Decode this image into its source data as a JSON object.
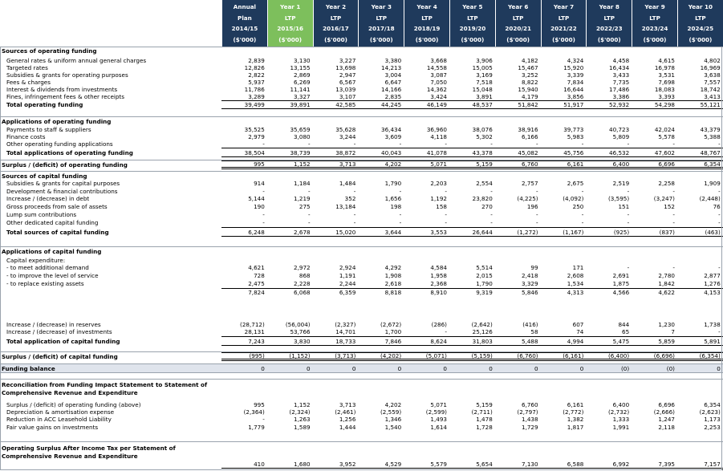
{
  "header": {
    "columns": [
      {
        "l1": "Annual",
        "l2": "Plan",
        "l3": "2014/15",
        "l4": "($'000)"
      },
      {
        "l1": "Year 1",
        "l2": "LTP",
        "l3": "2015/16",
        "l4": "($'000)"
      },
      {
        "l1": "Year 2",
        "l2": "LTP",
        "l3": "2016/17",
        "l4": "($'000)"
      },
      {
        "l1": "Year 3",
        "l2": "LTP",
        "l3": "2017/18",
        "l4": "($'000)"
      },
      {
        "l1": "Year 4",
        "l2": "LTP",
        "l3": "2018/19",
        "l4": "($'000)"
      },
      {
        "l1": "Year 5",
        "l2": "LTP",
        "l3": "2019/20",
        "l4": "($'000)"
      },
      {
        "l1": "Year 6",
        "l2": "LTP",
        "l3": "2020/21",
        "l4": "($'000)"
      },
      {
        "l1": "Year 7",
        "l2": "LTP",
        "l3": "2021/22",
        "l4": "($'000)"
      },
      {
        "l1": "Year 8",
        "l2": "LTP",
        "l3": "2022/23",
        "l4": "($'000)"
      },
      {
        "l1": "Year 9",
        "l2": "LTP",
        "l3": "2023/24",
        "l4": "($'000)"
      },
      {
        "l1": "Year 10",
        "l2": "LTP",
        "l3": "2024/25",
        "l4": "($'000)"
      }
    ]
  },
  "rows": [
    {
      "label": "Sources of operating funding",
      "kind": "section",
      "values": []
    },
    {
      "label": "General rates & uniform annual general charges",
      "kind": "item",
      "values": [
        "2,839",
        "3,130",
        "3,227",
        "3,380",
        "3,668",
        "3,906",
        "4,182",
        "4,324",
        "4,458",
        "4,615",
        "4,802"
      ]
    },
    {
      "label": "Targeted rates",
      "kind": "item",
      "values": [
        "12,826",
        "13,155",
        "13,698",
        "14,213",
        "14,558",
        "15,005",
        "15,467",
        "15,920",
        "16,434",
        "16,978",
        "16,969"
      ]
    },
    {
      "label": "Subsidies & grants for operating purposes",
      "kind": "item",
      "values": [
        "2,822",
        "2,869",
        "2,947",
        "3,004",
        "3,087",
        "3,169",
        "3,252",
        "3,339",
        "3,433",
        "3,531",
        "3,638"
      ]
    },
    {
      "label": "Fees & charges",
      "kind": "item",
      "values": [
        "5,937",
        "6,269",
        "6,567",
        "6,647",
        "7,050",
        "7,518",
        "8,822",
        "7,834",
        "7,735",
        "7,698",
        "7,557"
      ]
    },
    {
      "label": "Interest & dividends from investments",
      "kind": "item",
      "values": [
        "11,786",
        "11,141",
        "13,039",
        "14,166",
        "14,362",
        "15,048",
        "15,940",
        "16,644",
        "17,486",
        "18,083",
        "18,742"
      ]
    },
    {
      "label": "Fines, infringement fees & other receipts",
      "kind": "item",
      "values": [
        "3,289",
        "3,327",
        "3,107",
        "2,835",
        "3,424",
        "3,891",
        "4,179",
        "3,856",
        "3,386",
        "3,393",
        "3,413"
      ]
    },
    {
      "label": "Total operating funding",
      "kind": "total",
      "values": [
        "39,499",
        "39,891",
        "42,585",
        "44,245",
        "46,149",
        "48,537",
        "51,842",
        "51,917",
        "52,932",
        "54,298",
        "55,121"
      ]
    },
    {
      "label": "Applications of operating funding",
      "kind": "section",
      "values": []
    },
    {
      "label": "Payments to staff & suppliers",
      "kind": "item",
      "values": [
        "35,525",
        "35,659",
        "35,628",
        "36,434",
        "36,960",
        "38,076",
        "38,916",
        "39,773",
        "40,723",
        "42,024",
        "43,379"
      ]
    },
    {
      "label": "Finance costs",
      "kind": "item",
      "values": [
        "2,979",
        "3,080",
        "3,244",
        "3,609",
        "4,118",
        "5,302",
        "6,166",
        "5,983",
        "5,809",
        "5,578",
        "5,388"
      ]
    },
    {
      "label": "Other operating funding applications",
      "kind": "item",
      "values": [
        "-",
        "-",
        "-",
        "-",
        "-",
        "-",
        "-",
        "-",
        "-",
        "-",
        "-"
      ]
    },
    {
      "label": "Total applications of operating funding",
      "kind": "total",
      "values": [
        "38,504",
        "38,739",
        "38,872",
        "40,043",
        "41,078",
        "43,378",
        "45,082",
        "45,756",
        "46,532",
        "47,602",
        "48,767"
      ]
    },
    {
      "label": "Surplus / (deficit) of operating funding",
      "kind": "surplus",
      "values": [
        "995",
        "1,152",
        "3,713",
        "4,202",
        "5,071",
        "5,159",
        "6,760",
        "6,161",
        "6,400",
        "6,696",
        "6,354"
      ]
    },
    {
      "label": "Sources of capital funding",
      "kind": "section",
      "values": []
    },
    {
      "label": "Subsidies & grants for capital purposes",
      "kind": "item",
      "values": [
        "914",
        "1,184",
        "1,484",
        "1,790",
        "2,203",
        "2,554",
        "2,757",
        "2,675",
        "2,519",
        "2,258",
        "1,909"
      ]
    },
    {
      "label": "Development & financial contributions",
      "kind": "item",
      "values": [
        "-",
        "-",
        "-",
        "-",
        "-",
        "-",
        "-",
        "-",
        "-",
        "-",
        "-"
      ]
    },
    {
      "label": "Increase / (decrease) in debt",
      "kind": "item",
      "values": [
        "5,144",
        "1,219",
        "352",
        "1,656",
        "1,192",
        "23,820",
        "(4,225)",
        "(4,092)",
        "(3,595)",
        "(3,247)",
        "(2,448)"
      ]
    },
    {
      "label": "Gross proceeds from sale of assets",
      "kind": "item",
      "values": [
        "190",
        "275",
        "13,184",
        "198",
        "158",
        "270",
        "196",
        "250",
        "151",
        "152",
        "76"
      ]
    },
    {
      "label": "Lump sum contributions",
      "kind": "item",
      "values": [
        "-",
        "-",
        "-",
        "-",
        "-",
        "-",
        "-",
        "-",
        "-",
        "-",
        "-"
      ]
    },
    {
      "label": "Other dedicated capital funding",
      "kind": "item",
      "values": [
        "-",
        "-",
        "-",
        "-",
        "-",
        "-",
        "-",
        "-",
        "-",
        "-",
        "-"
      ]
    },
    {
      "label": "Total sources of capital funding",
      "kind": "total",
      "values": [
        "6,248",
        "2,678",
        "15,020",
        "3,644",
        "3,553",
        "26,644",
        "(1,272)",
        "(1,167)",
        "(925)",
        "(837)",
        "(463)"
      ]
    },
    {
      "label": "Applications of capital funding",
      "kind": "section",
      "values": []
    },
    {
      "label": "Capital expenditure:",
      "kind": "item",
      "values": []
    },
    {
      "label": "- to meet additional demand",
      "kind": "item",
      "values": [
        "4,621",
        "2,972",
        "2,924",
        "4,292",
        "4,584",
        "5,514",
        "99",
        "171",
        "-",
        "-",
        "-"
      ]
    },
    {
      "label": "- to improve the level of service",
      "kind": "item",
      "values": [
        "728",
        "868",
        "1,191",
        "1,908",
        "1,958",
        "2,015",
        "2,418",
        "2,608",
        "2,691",
        "2,780",
        "2,877"
      ]
    },
    {
      "label": "- to replace existing assets",
      "kind": "item",
      "values": [
        "2,475",
        "2,228",
        "2,244",
        "2,618",
        "2,368",
        "1,790",
        "3,329",
        "1,534",
        "1,875",
        "1,842",
        "1,276"
      ]
    },
    {
      "label": "",
      "kind": "subtotal",
      "values": [
        "7,824",
        "6,068",
        "6,359",
        "8,818",
        "8,910",
        "9,319",
        "5,846",
        "4,313",
        "4,566",
        "4,622",
        "4,153"
      ]
    },
    {
      "label": "",
      "kind": "blank",
      "values": []
    },
    {
      "label": "Increase / (decrease) in reserves",
      "kind": "item",
      "values": [
        "(28,712)",
        "(56,004)",
        "(2,327)",
        "(2,672)",
        "(286)",
        "(2,642)",
        "(416)",
        "607",
        "844",
        "1,230",
        "1,738"
      ]
    },
    {
      "label": "Increase / (decrease) of investments",
      "kind": "item",
      "values": [
        "28,131",
        "53,766",
        "14,701",
        "1,700",
        "-",
        "25,126",
        "58",
        "74",
        "65",
        "7",
        "-"
      ]
    },
    {
      "label": "Total application of capital funding",
      "kind": "total",
      "values": [
        "7,243",
        "3,830",
        "18,733",
        "7,846",
        "8,624",
        "31,803",
        "5,488",
        "4,994",
        "5,475",
        "5,859",
        "5,891"
      ]
    },
    {
      "label": "Surplus / (deficit) of capital funding",
      "kind": "surplus",
      "values": [
        "(995)",
        "(1,152)",
        "(3,713)",
        "(4,202)",
        "(5,071)",
        "(5,159)",
        "(6,760)",
        "(6,161)",
        "(6,400)",
        "(6,696)",
        "(6,354)"
      ]
    },
    {
      "label": "Funding balance",
      "kind": "balance",
      "values": [
        "0",
        "0",
        "0",
        "0",
        "0",
        "0",
        "0",
        "0",
        "(0)",
        "(0)",
        "0"
      ]
    },
    {
      "label": "Reconciliation from Funding Impact Statement to Statement of Comprehensive Revenue and Expenditure",
      "kind": "recon-head",
      "values": []
    },
    {
      "label": "Surplus / (deficit) of operating funding (above)",
      "kind": "item",
      "values": [
        "995",
        "1,152",
        "3,713",
        "4,202",
        "5,071",
        "5,159",
        "6,760",
        "6,161",
        "6,400",
        "6,696",
        "6,354"
      ]
    },
    {
      "label": "Depreciation & amortisation expense",
      "kind": "item",
      "values": [
        "(2,364)",
        "(2,324)",
        "(2,461)",
        "(2,559)",
        "(2,599)",
        "(2,711)",
        "(2,797)",
        "(2,772)",
        "(2,732)",
        "(2,666)",
        "(2,623)"
      ]
    },
    {
      "label": "Reduction in ACC Leasehold Liability",
      "kind": "item",
      "values": [
        "-",
        "1,263",
        "1,256",
        "1,346",
        "1,493",
        "1,478",
        "1,438",
        "1,382",
        "1,333",
        "1,247",
        "1,173"
      ]
    },
    {
      "label": "Fair value gains on investments",
      "kind": "item",
      "values": [
        "1,779",
        "1,589",
        "1,444",
        "1,540",
        "1,614",
        "1,728",
        "1,729",
        "1,817",
        "1,991",
        "2,118",
        "2,253"
      ]
    },
    {
      "label": "Operating Surplus After Income Tax per Statement of Comprehensive Revenue and Expenditure",
      "kind": "final",
      "values": [
        "410",
        "1,680",
        "3,952",
        "4,529",
        "5,579",
        "5,654",
        "7,130",
        "6,588",
        "6,992",
        "7,395",
        "7,157"
      ]
    }
  ]
}
